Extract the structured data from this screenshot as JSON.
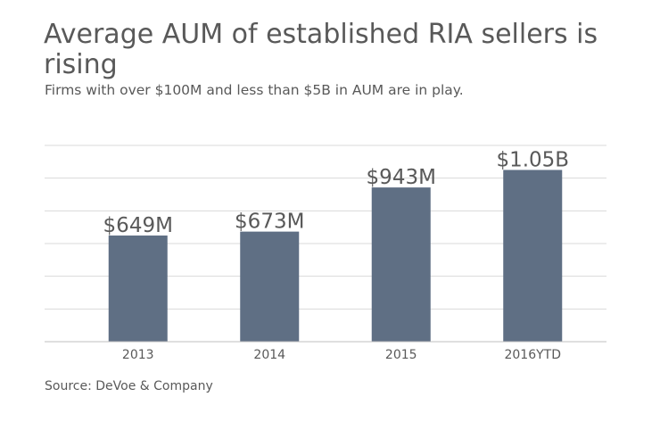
{
  "chart_data": {
    "type": "bar",
    "title": "Average AUM of established RIA sellers is rising",
    "subtitle": "Firms with over $100M and less than $5B in AUM are in play.",
    "categories": [
      "2013",
      "2014",
      "2015",
      "2016YTD"
    ],
    "values": [
      649,
      673,
      943,
      1050
    ],
    "data_labels": [
      "$649M",
      "$673M",
      "$943M",
      "$1.05B"
    ],
    "unit": "$M",
    "ylim": [
      0,
      1200
    ],
    "grid": true,
    "bar_color": "#5f6f84",
    "source": "Source: DeVoe & Company"
  }
}
